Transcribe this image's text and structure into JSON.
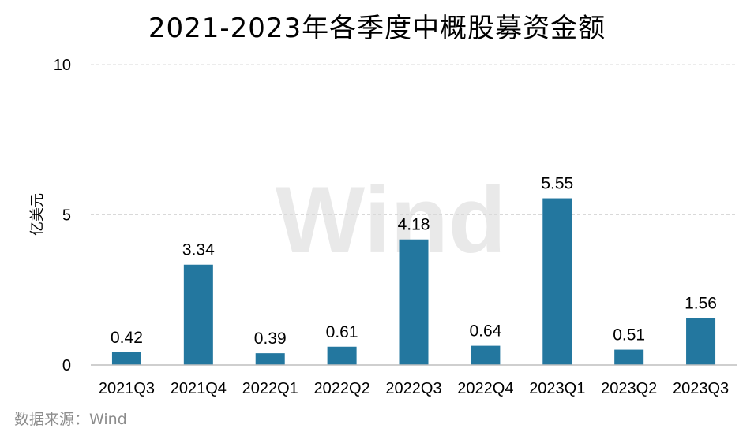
{
  "chart_data": {
    "type": "bar",
    "title": "2021-2023年各季度中概股募资金额",
    "ylabel": "亿美元",
    "xlabel": "",
    "categories": [
      "2021Q3",
      "2021Q4",
      "2022Q1",
      "2022Q2",
      "2022Q3",
      "2022Q4",
      "2023Q1",
      "2023Q2",
      "2023Q3"
    ],
    "values": [
      0.42,
      3.34,
      0.39,
      0.61,
      4.18,
      0.64,
      5.55,
      0.51,
      1.56
    ],
    "data_labels": [
      "0.42",
      "3.34",
      "0.39",
      "0.61",
      "4.18",
      "0.64",
      "5.55",
      "0.51",
      "1.56"
    ],
    "ylim": [
      0,
      10
    ],
    "yticks": [
      0,
      5,
      10
    ],
    "ytick_labels": [
      "0",
      "5",
      "10"
    ],
    "grid": true,
    "bar_color": "#23779f",
    "grid_color": "#d9d9d9"
  },
  "watermark": "Wind",
  "source_note": "数据来源：Wind"
}
